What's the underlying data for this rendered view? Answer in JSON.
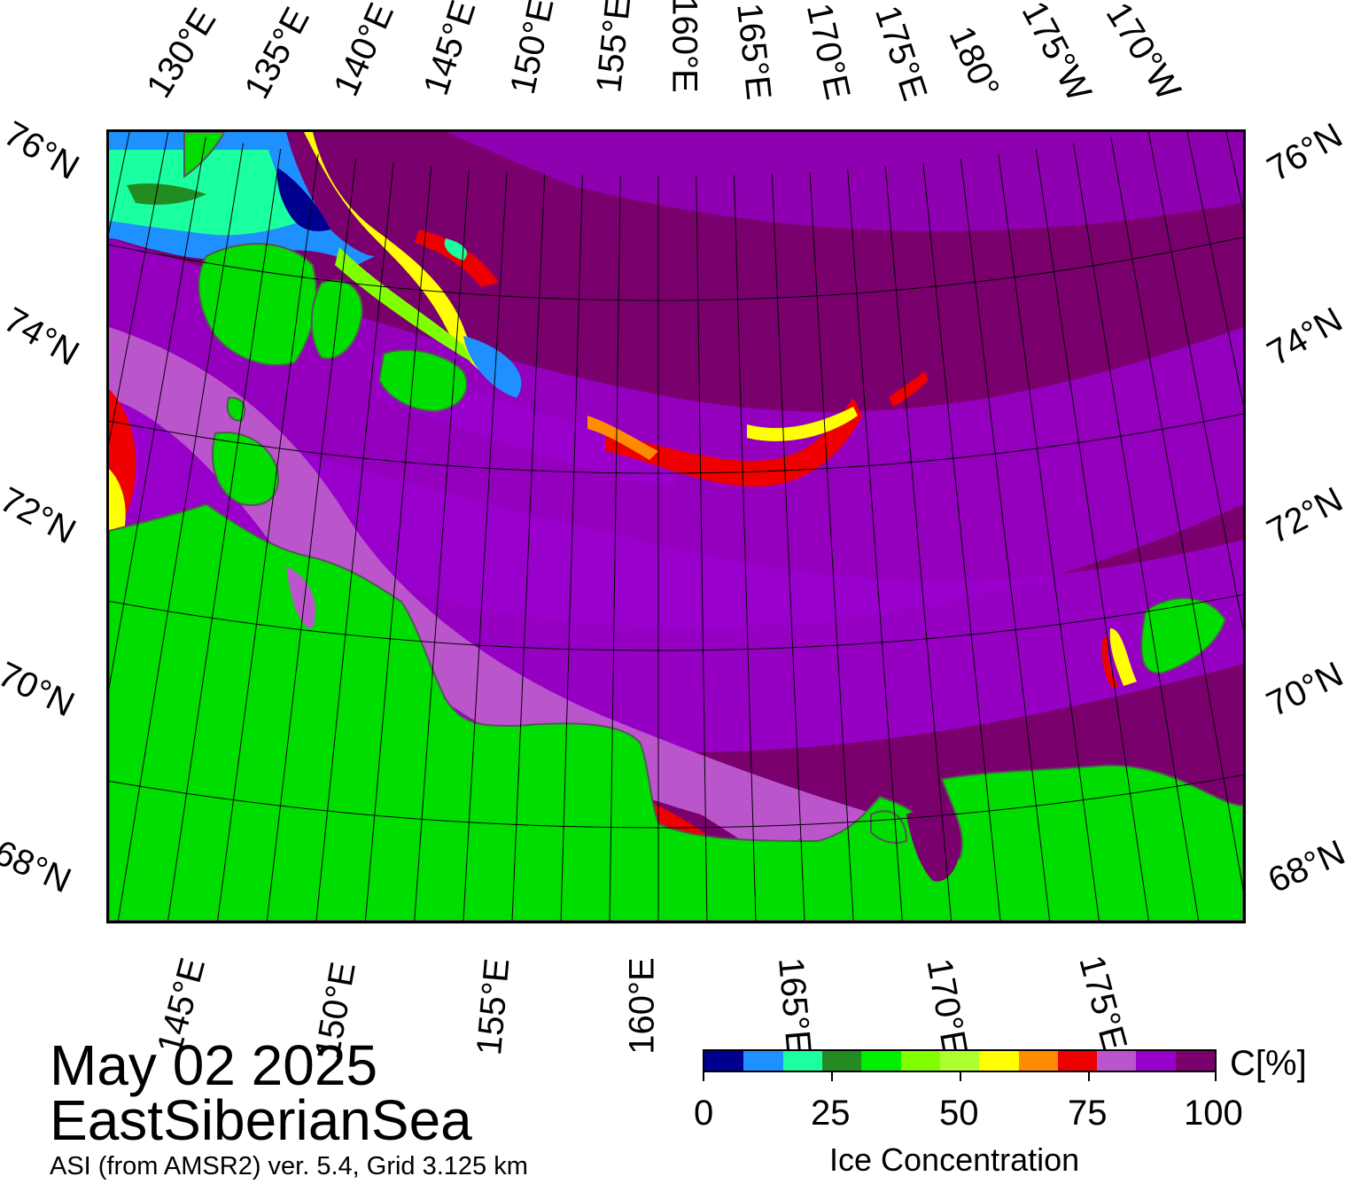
{
  "map": {
    "date": "May 02 2025",
    "region": "EastSiberianSea",
    "source": "ASI (from AMSR2) ver. 5.4,  Grid 3.125 km",
    "colors": {
      "land": "#00dd00",
      "coast": "#555555",
      "ice_high": "#7a006e",
      "ice_mid": "#9900cc",
      "ice_low": "#bb55cc",
      "ice_red": "#ee0000",
      "ice_yellow": "#ffff00",
      "open_water": "#0000aa",
      "grid": "#000000"
    },
    "top_lon_labels": [
      "130°E",
      "135°E",
      "140°E",
      "145°E",
      "150°E",
      "155°E",
      "160°E",
      "165°E",
      "170°E",
      "175°E",
      "180°",
      "175°W",
      "170°W"
    ],
    "bottom_lon_labels": [
      "145°E",
      "150°E",
      "155°E",
      "160°E",
      "165°E",
      "170°E",
      "175°E"
    ],
    "left_lat_labels": [
      "76°N",
      "74°N",
      "72°N",
      "70°N",
      "68°N"
    ],
    "right_lat_labels": [
      "76°N",
      "74°N",
      "72°N",
      "70°N",
      "68°N"
    ]
  },
  "colorbar": {
    "unit": "C[%]",
    "title": "Ice Concentration",
    "ticks": [
      "0",
      "25",
      "50",
      "75",
      "100"
    ],
    "segments": [
      "#000090",
      "#1e90ff",
      "#1affa0",
      "#228b22",
      "#00ee00",
      "#7fff00",
      "#adff2f",
      "#ffff00",
      "#ff8c00",
      "#ee0000",
      "#bb55cc",
      "#9900cc",
      "#7a006e"
    ]
  }
}
